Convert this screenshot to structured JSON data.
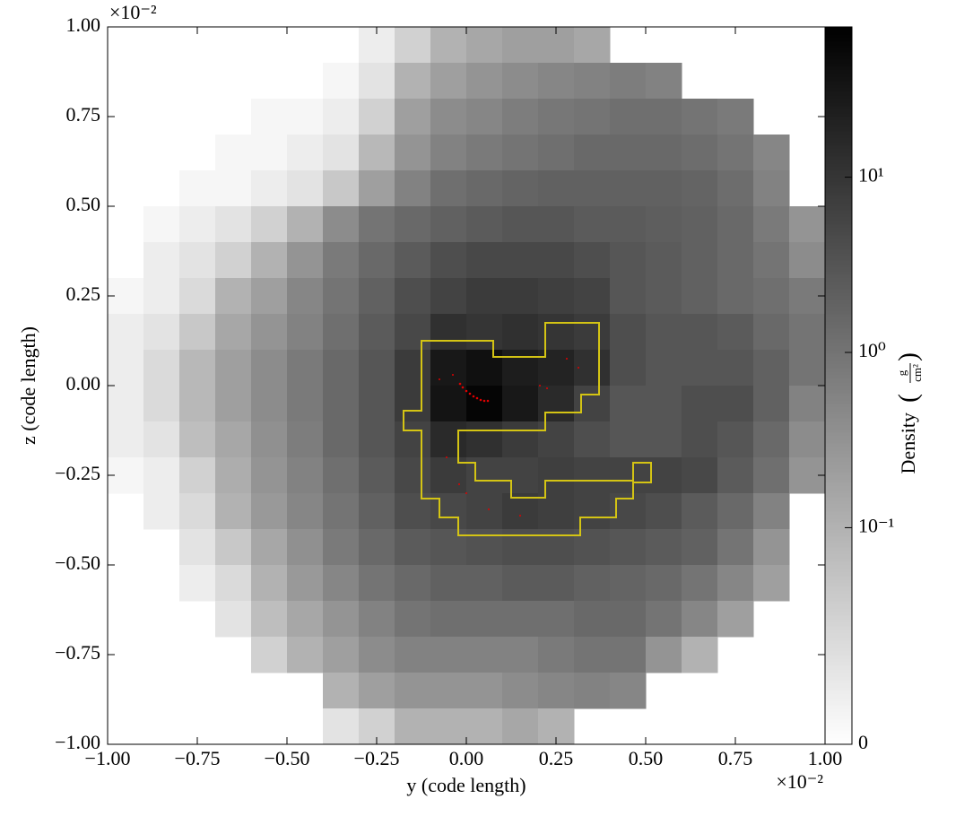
{
  "chart_data": {
    "type": "heatmap",
    "x_label": "y  (code length)",
    "y_label": "z  (code length)",
    "x_offset": "×10⁻²",
    "y_offset": "×10⁻²",
    "xlim": [
      -1,
      1
    ],
    "ylim": [
      -1,
      1
    ],
    "xticks": [
      {
        "value": -1,
        "label": "−1.00"
      },
      {
        "value": -0.75,
        "label": "−0.75"
      },
      {
        "value": -0.5,
        "label": "−0.50"
      },
      {
        "value": -0.25,
        "label": "−0.25"
      },
      {
        "value": 0,
        "label": "0.00"
      },
      {
        "value": 0.25,
        "label": "0.25"
      },
      {
        "value": 0.5,
        "label": "0.50"
      },
      {
        "value": 0.75,
        "label": "0.75"
      },
      {
        "value": 1,
        "label": "1.00"
      }
    ],
    "yticks": [
      {
        "value": -1,
        "label": "−1.00"
      },
      {
        "value": -0.75,
        "label": "−0.75"
      },
      {
        "value": -0.5,
        "label": "−0.50"
      },
      {
        "value": -0.25,
        "label": "−0.25"
      },
      {
        "value": 0,
        "label": "0.00"
      },
      {
        "value": 0.25,
        "label": "0.25"
      },
      {
        "value": 0.5,
        "label": "0.50"
      },
      {
        "value": 0.75,
        "label": "0.75"
      },
      {
        "value": 1,
        "label": "1.00"
      }
    ],
    "colorbar": {
      "label": "Density",
      "unit_numerator": "g",
      "unit_denominator": "cm²",
      "scale": "symlog",
      "colormap": "gray_r",
      "lim": [
        0,
        72
      ],
      "ticks": [
        {
          "value": 0,
          "label": "0"
        },
        {
          "value": 0.1,
          "label": "10⁻¹"
        },
        {
          "value": 1,
          "label": "10⁰"
        },
        {
          "value": 10,
          "label": "10¹"
        }
      ]
    },
    "x": [
      -0.95,
      -0.85,
      -0.75,
      -0.65,
      -0.55,
      -0.45,
      -0.35,
      -0.25,
      -0.15,
      -0.05,
      0.05,
      0.15,
      0.25,
      0.35,
      0.45,
      0.55,
      0.65,
      0.75,
      0.85,
      0.95
    ],
    "y": [
      0.95,
      0.85,
      0.75,
      0.65,
      0.55,
      0.45,
      0.35,
      0.25,
      0.15,
      0.05,
      -0.05,
      -0.15,
      -0.25,
      -0.35,
      -0.45,
      -0.55,
      -0.65,
      -0.75,
      -0.85,
      -0.95
    ],
    "z": [
      [
        null,
        null,
        null,
        null,
        null,
        null,
        null,
        0.02,
        0.05,
        0.1,
        0.15,
        0.2,
        0.2,
        0.15,
        null,
        null,
        null,
        null,
        null,
        null
      ],
      [
        null,
        null,
        null,
        null,
        null,
        null,
        0.01,
        0.03,
        0.1,
        0.2,
        0.3,
        0.4,
        0.5,
        0.6,
        0.7,
        0.6,
        null,
        null,
        null,
        null
      ],
      [
        null,
        null,
        null,
        null,
        0.01,
        0.01,
        0.02,
        0.05,
        0.2,
        0.4,
        0.5,
        0.7,
        0.9,
        1,
        1.2,
        1.2,
        1,
        0.8,
        null,
        null
      ],
      [
        null,
        null,
        null,
        0.01,
        0.01,
        0.02,
        0.03,
        0.08,
        0.3,
        0.6,
        0.8,
        1,
        1.2,
        1.5,
        1.5,
        1.5,
        1.3,
        1,
        0.5,
        null
      ],
      [
        null,
        null,
        0.01,
        0.01,
        0.02,
        0.03,
        0.06,
        0.2,
        0.6,
        1.2,
        1.5,
        1.8,
        2,
        2,
        2,
        2,
        1.8,
        1.3,
        0.6,
        null
      ],
      [
        null,
        0.01,
        0.02,
        0.03,
        0.05,
        0.1,
        0.4,
        1,
        1.5,
        2,
        2.5,
        3,
        3,
        2.5,
        2.5,
        2.2,
        2,
        1.5,
        0.8,
        0.3
      ],
      [
        null,
        0.02,
        0.03,
        0.05,
        0.1,
        0.3,
        0.8,
        1.5,
        2.5,
        4,
        5,
        5,
        5,
        4,
        3,
        2.5,
        2,
        1.5,
        1,
        0.4
      ],
      [
        0.01,
        0.02,
        0.04,
        0.1,
        0.2,
        0.5,
        1,
        2,
        4,
        6,
        8,
        8,
        7,
        6,
        3,
        2.5,
        2,
        1.5,
        1.2,
        0.8
      ],
      [
        0.02,
        0.03,
        0.06,
        0.15,
        0.3,
        0.6,
        1.2,
        2.5,
        5,
        12,
        10,
        12,
        10,
        8,
        4,
        3,
        3,
        2.5,
        1.5,
        1
      ],
      [
        0.02,
        0.04,
        0.08,
        0.2,
        0.4,
        0.8,
        1.5,
        3,
        8,
        30,
        40,
        25,
        20,
        12,
        4,
        3,
        3,
        3,
        2,
        1
      ],
      [
        0.02,
        0.04,
        0.08,
        0.2,
        0.4,
        0.8,
        1.5,
        3,
        8,
        35,
        60,
        30,
        15,
        6,
        3,
        3,
        4,
        4,
        2,
        0.6
      ],
      [
        0.02,
        0.03,
        0.07,
        0.15,
        0.35,
        0.7,
        1.5,
        3,
        6,
        15,
        12,
        8,
        6,
        4,
        3,
        3,
        4,
        3,
        1.5,
        0.4
      ],
      [
        0.01,
        0.02,
        0.05,
        0.12,
        0.3,
        0.6,
        1.2,
        2.5,
        5,
        8,
        6,
        6,
        7,
        6,
        6,
        6,
        5,
        2.5,
        1.2,
        0.3
      ],
      [
        null,
        0.02,
        0.04,
        0.1,
        0.25,
        0.5,
        1,
        2,
        4,
        5,
        6,
        8,
        7,
        6,
        5,
        4,
        2.5,
        1.5,
        0.6,
        null
      ],
      [
        null,
        null,
        0.03,
        0.06,
        0.15,
        0.35,
        0.8,
        1.5,
        2.5,
        3,
        3.5,
        4,
        4,
        3.5,
        3,
        2.5,
        2,
        1,
        0.3,
        null
      ],
      [
        null,
        null,
        0.02,
        0.04,
        0.1,
        0.25,
        0.5,
        1,
        1.5,
        2,
        2,
        2.5,
        2.5,
        2,
        1.8,
        1.5,
        1,
        0.5,
        0.2,
        null
      ],
      [
        null,
        null,
        null,
        0.03,
        0.07,
        0.15,
        0.3,
        0.6,
        1,
        1.2,
        1.2,
        1.2,
        1.2,
        1.5,
        1.5,
        1,
        0.5,
        0.2,
        null,
        null
      ],
      [
        null,
        null,
        null,
        null,
        0.05,
        0.1,
        0.2,
        0.4,
        0.6,
        0.6,
        0.6,
        0.6,
        0.8,
        1,
        1,
        0.3,
        0.1,
        null,
        null,
        null
      ],
      [
        null,
        null,
        null,
        null,
        null,
        null,
        0.1,
        0.2,
        0.3,
        0.3,
        0.3,
        0.4,
        0.5,
        0.6,
        0.5,
        null,
        null,
        null,
        null,
        null
      ],
      [
        null,
        null,
        null,
        null,
        null,
        null,
        0.03,
        0.05,
        0.1,
        0.1,
        0.1,
        0.15,
        0.1,
        null,
        null,
        null,
        null,
        null,
        null,
        null
      ]
    ]
  }
}
